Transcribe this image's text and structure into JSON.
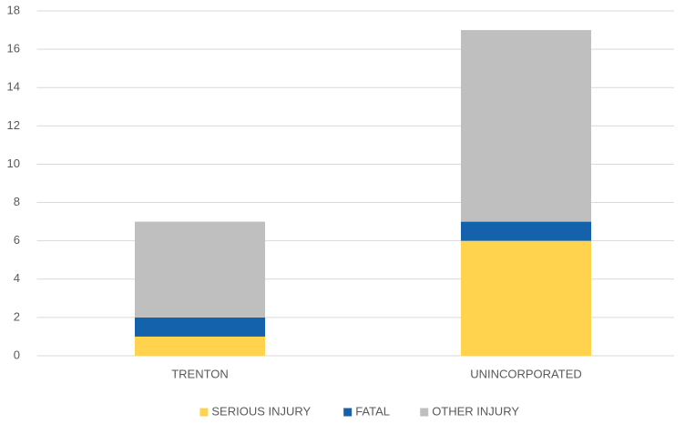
{
  "chart_data": {
    "type": "stacked_bar",
    "categories": [
      "TRENTON",
      "UNINCORPORATED"
    ],
    "series": [
      {
        "name": "SERIOUS INJURY",
        "color": "#ffd34e",
        "values": [
          1,
          6
        ]
      },
      {
        "name": "FATAL",
        "color": "#1462ab",
        "values": [
          1,
          1
        ]
      },
      {
        "name": "OTHER INJURY",
        "color": "#bfbfbf",
        "values": [
          5,
          10
        ]
      }
    ],
    "ylim": [
      0,
      18
    ],
    "yticks": [
      0,
      2,
      4,
      6,
      8,
      10,
      12,
      14,
      16,
      18
    ],
    "grid": true,
    "legend": "bottom"
  }
}
